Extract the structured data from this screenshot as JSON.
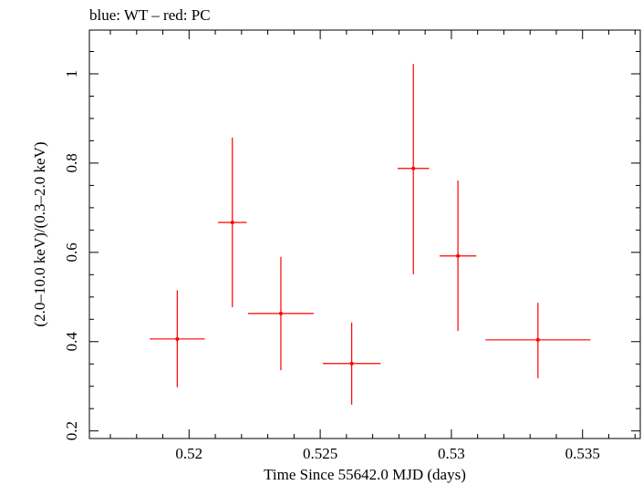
{
  "chart_data": {
    "type": "scatter",
    "title": "blue: WT – red: PC",
    "xlabel": "Time Since 55642.0 MJD (days)",
    "ylabel": "(2.0–10.0 keV)/(0.3–2.0 keV)",
    "xlim": [
      0.5162,
      0.5372
    ],
    "ylim": [
      0.183,
      1.098
    ],
    "x_ticks": [
      0.52,
      0.525,
      0.53,
      0.535
    ],
    "x_tick_labels": [
      "0.52",
      "0.525",
      "0.53",
      "0.535"
    ],
    "y_ticks": [
      0.2,
      0.4,
      0.6,
      0.8,
      1.0
    ],
    "y_tick_labels": [
      "0.2",
      "0.4",
      "0.6",
      "0.8",
      "1"
    ],
    "grid": false,
    "colors": {
      "PC": "#ff0000",
      "WT": "#0000ff",
      "axes": "#000000"
    },
    "series": [
      {
        "name": "PC",
        "points": [
          {
            "x": 0.51955,
            "y": 0.406,
            "xerr": 0.00105,
            "ylo": 0.298,
            "yhi": 0.515
          },
          {
            "x": 0.52165,
            "y": 0.667,
            "xerr": 0.00055,
            "ylo": 0.477,
            "yhi": 0.857
          },
          {
            "x": 0.5235,
            "y": 0.463,
            "xerr": 0.00125,
            "ylo": 0.336,
            "yhi": 0.59
          },
          {
            "x": 0.5262,
            "y": 0.351,
            "xerr": 0.0011,
            "ylo": 0.259,
            "yhi": 0.443
          },
          {
            "x": 0.52855,
            "y": 0.788,
            "xerr": 0.0006,
            "ylo": 0.551,
            "yhi": 1.022
          },
          {
            "x": 0.53025,
            "y": 0.592,
            "xerr": 0.0007,
            "ylo": 0.424,
            "yhi": 0.761
          },
          {
            "x": 0.5333,
            "y": 0.404,
            "xerr": 0.002,
            "ylo": 0.318,
            "yhi": 0.487
          }
        ]
      }
    ]
  }
}
